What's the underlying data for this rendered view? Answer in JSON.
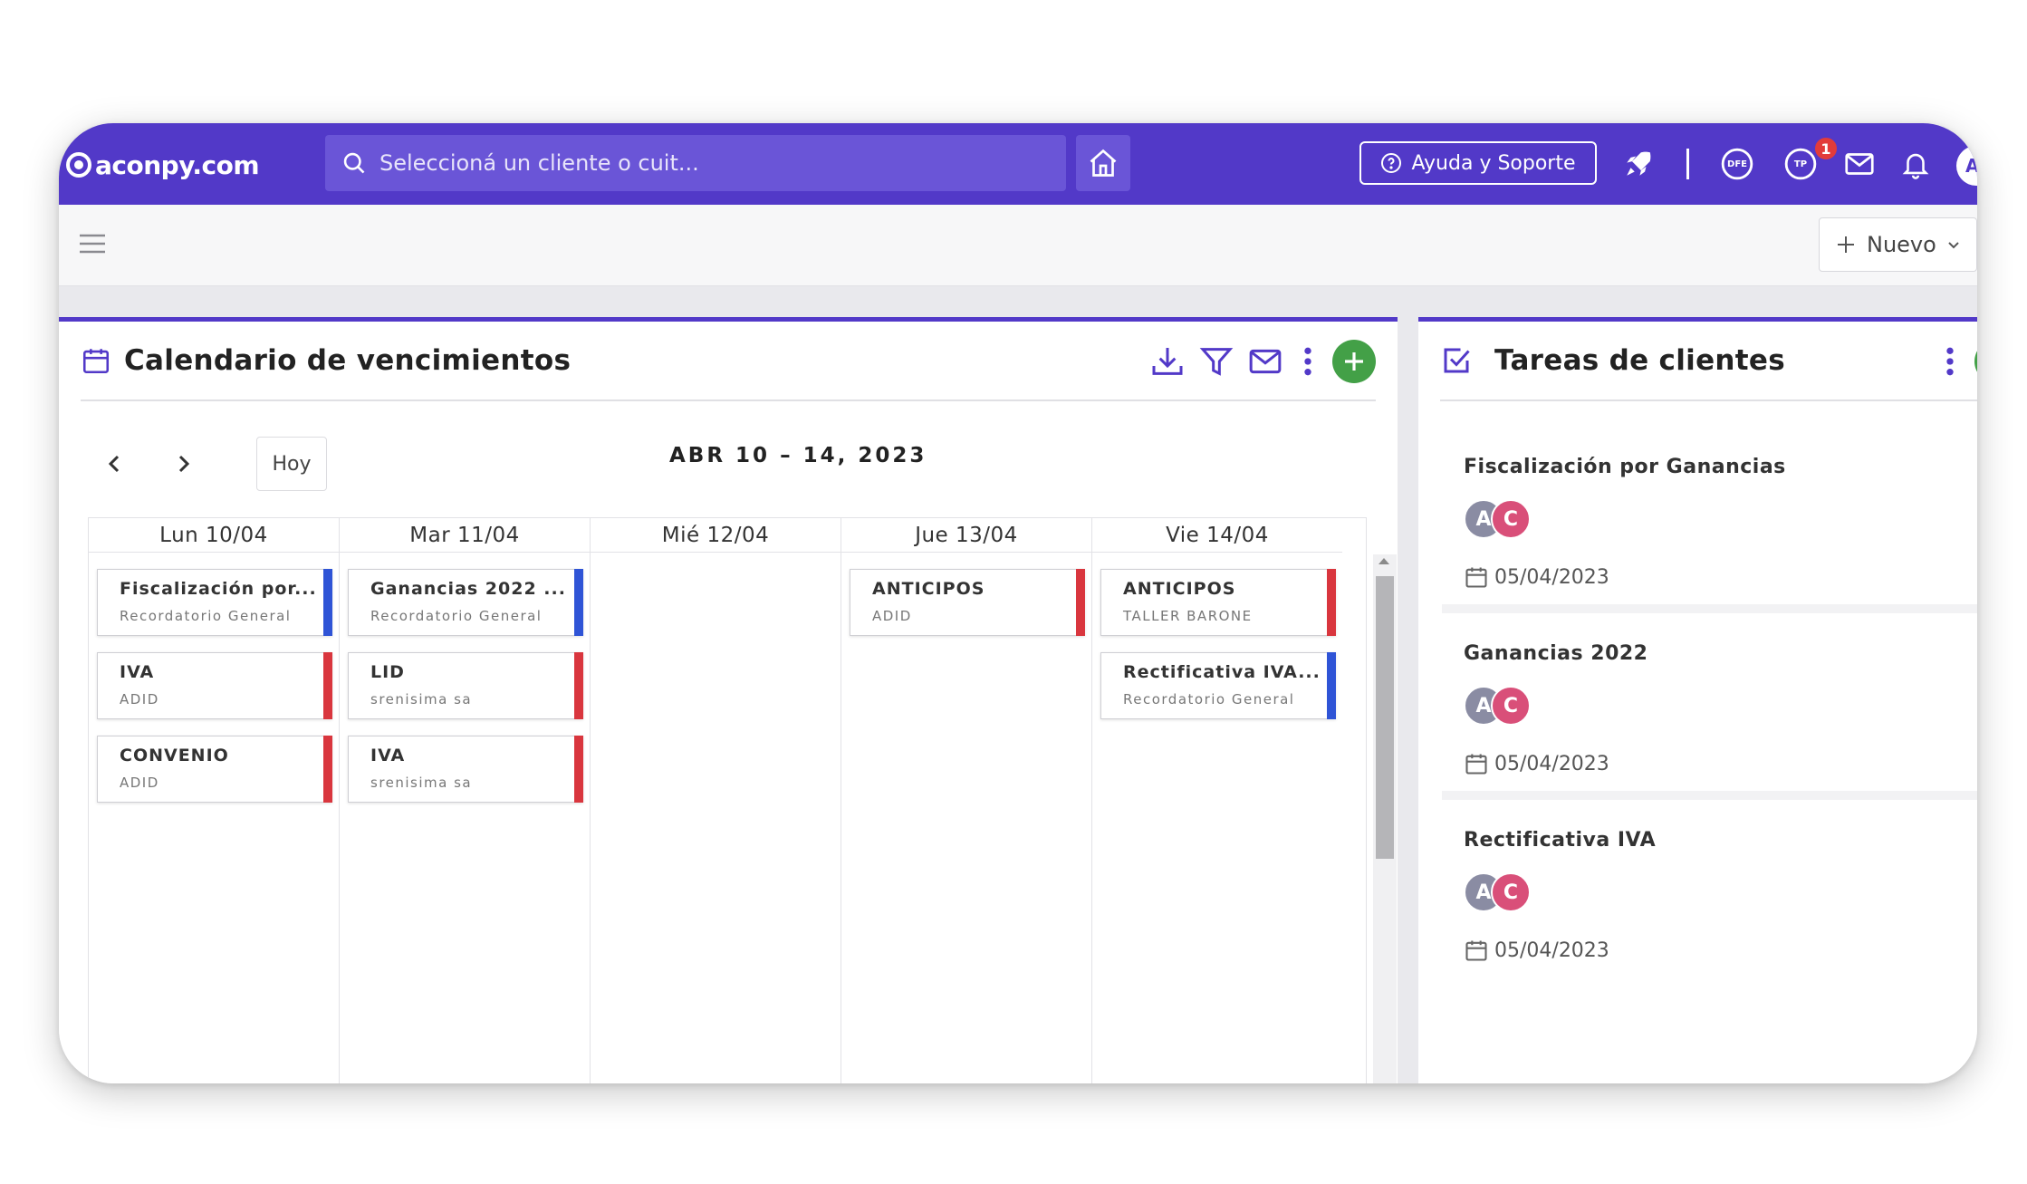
{
  "app": {
    "logo_text": "aconpy.com",
    "brand_color": "#5239c8"
  },
  "search": {
    "placeholder": "Seleccioná un cliente o cuit..."
  },
  "topbar": {
    "help_label": "Ayuda y Soporte",
    "notification_count": "1",
    "icons": [
      "rocket-icon",
      "dfe-icon",
      "tp-icon",
      "mail-icon",
      "bell-icon"
    ],
    "dfe_label": "DFE",
    "tp_label": "TP",
    "user_initial": "A"
  },
  "subbar": {
    "new_label": "Nuevo"
  },
  "calendar": {
    "title": "Calendario de vencimientos",
    "today_label": "Hoy",
    "range": "ABR 10 – 14, 2023",
    "days": [
      {
        "label": "Lun 10/04",
        "events": [
          {
            "title": "Fiscalización por...",
            "sub": "Recordatorio General",
            "color": "#2f54d6"
          },
          {
            "title": "IVA",
            "sub": "ADID",
            "color": "#d9363e"
          },
          {
            "title": "CONVENIO",
            "sub": "ADID",
            "color": "#d9363e"
          }
        ]
      },
      {
        "label": "Mar 11/04",
        "events": [
          {
            "title": "Ganancias 2022 ...",
            "sub": "Recordatorio General",
            "color": "#2f54d6"
          },
          {
            "title": "LID",
            "sub": "srenisima sa",
            "color": "#d9363e"
          },
          {
            "title": "IVA",
            "sub": "srenisima sa",
            "color": "#d9363e"
          }
        ]
      },
      {
        "label": "Mié 12/04",
        "events": []
      },
      {
        "label": "Jue 13/04",
        "events": [
          {
            "title": "ANTICIPOS",
            "sub": "ADID",
            "color": "#d9363e"
          }
        ]
      },
      {
        "label": "Vie 14/04",
        "events": [
          {
            "title": "ANTICIPOS",
            "sub": "TALLER BARONE",
            "color": "#d9363e"
          },
          {
            "title": "Rectificativa IVA...",
            "sub": "Recordatorio General",
            "color": "#2f54d6"
          }
        ]
      }
    ]
  },
  "tasks": {
    "title": "Tareas de clientes",
    "items": [
      {
        "title": "Fiscalización por Ganancias",
        "avatars": [
          "A",
          "C"
        ],
        "date": "05/04/2023"
      },
      {
        "title": "Ganancias 2022",
        "avatars": [
          "A",
          "C"
        ],
        "date": "05/04/2023"
      },
      {
        "title": "Rectificativa IVA",
        "avatars": [
          "A",
          "C"
        ],
        "date": "05/04/2023"
      }
    ]
  }
}
